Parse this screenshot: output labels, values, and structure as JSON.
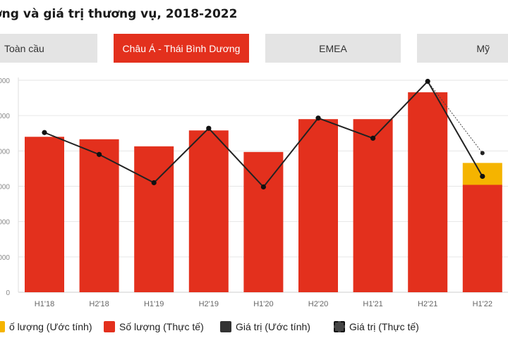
{
  "title": "ợng và giá trị thương vụ, 2018-2022",
  "tabs": [
    {
      "label": "Toàn cầu",
      "active": false
    },
    {
      "label": "Châu Á - Thái Bình Dương",
      "active": true
    },
    {
      "label": "EMEA",
      "active": false
    },
    {
      "label": "Mỹ",
      "active": false
    }
  ],
  "colors": {
    "accent": "#e3301d",
    "estimate": "#f5b400",
    "line": "#222222",
    "tab_bg": "#e4e4e4",
    "grid": "#e6e6e6"
  },
  "legend": [
    {
      "label": "ố lượng (Ước tính)",
      "color": "#f5b400",
      "style": "solid"
    },
    {
      "label": "Số lượng (Thực tế)",
      "color": "#e3301d",
      "style": "solid"
    },
    {
      "label": "Giá trị (Ước tính)",
      "color": "#333333",
      "style": "solid"
    },
    {
      "label": "Giá trị (Thực tế)",
      "color": "#333333",
      "style": "dashed"
    }
  ],
  "chart_data": {
    "type": "bar",
    "categories": [
      "H1'18",
      "H2'18",
      "H1'19",
      "H2'19",
      "H1'20",
      "H2'20",
      "H1'21",
      "H2'21",
      "H1'22"
    ],
    "y_tick_labels": [
      "0",
      "000",
      "000",
      "000",
      "000",
      "000",
      "000"
    ],
    "ylim": [
      0,
      6
    ],
    "series": [
      {
        "name": "Số lượng (Thực tế)",
        "type": "bar",
        "values": [
          4.4,
          4.33,
          4.13,
          4.58,
          3.97,
          4.9,
          4.9,
          5.66,
          3.04
        ]
      },
      {
        "name": "ố lượng (Ước tính)",
        "type": "bar",
        "values": [
          0,
          0,
          0,
          0,
          0,
          0,
          0,
          0,
          0.62
        ]
      },
      {
        "name": "Giá trị (Ước tính)",
        "type": "line",
        "values": [
          4.52,
          3.9,
          3.1,
          4.64,
          2.98,
          4.93,
          4.36,
          5.97,
          3.28
        ]
      },
      {
        "name": "Giá trị (Thực tế)",
        "type": "line",
        "dashed": true,
        "values": [
          null,
          null,
          null,
          null,
          null,
          null,
          null,
          5.97,
          3.94
        ]
      }
    ]
  }
}
